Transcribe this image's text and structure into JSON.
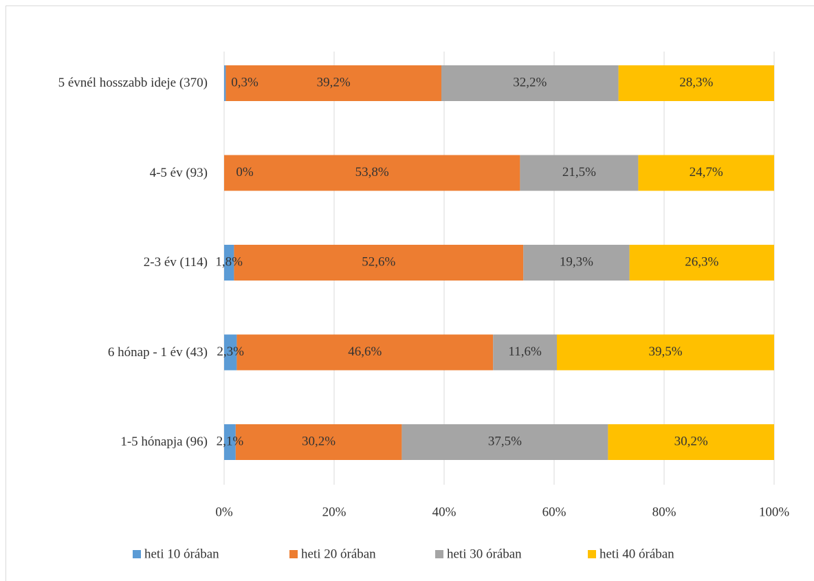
{
  "chart_data": {
    "type": "hbar_stacked",
    "categories": [
      "5 évnél hosszabb ideje (370)",
      "4-5 év (93)",
      "2-3 év (114)",
      "6 hónap - 1 év (43)",
      "1-5 hónapja (96)"
    ],
    "series": [
      {
        "name": "heti 10 órában",
        "color": "#5b9bd5",
        "values": [
          0.3,
          0,
          1.8,
          2.3,
          2.1
        ],
        "value_labels": [
          "0,3%",
          "0%",
          "1,8%",
          "2,3%",
          "2,1%"
        ]
      },
      {
        "name": "heti 20 órában",
        "color": "#ed7d31",
        "values": [
          39.2,
          53.8,
          52.6,
          46.6,
          30.2
        ],
        "value_labels": [
          "39,2%",
          "53,8%",
          "52,6%",
          "46,6%",
          "30,2%"
        ]
      },
      {
        "name": "heti 30 órában",
        "color": "#a5a5a5",
        "values": [
          32.2,
          21.5,
          19.3,
          11.6,
          37.5
        ],
        "value_labels": [
          "32,2%",
          "21,5%",
          "19,3%",
          "11,6%",
          "37,5%"
        ]
      },
      {
        "name": "heti 40 órában",
        "color": "#ffc000",
        "values": [
          28.3,
          24.7,
          26.3,
          39.5,
          30.2
        ],
        "value_labels": [
          "28,3%",
          "24,7%",
          "26,3%",
          "39,5%",
          "30,2%"
        ]
      }
    ],
    "xlim": [
      0,
      100
    ],
    "xticks": [
      {
        "value": 0,
        "label": "0%"
      },
      {
        "value": 20,
        "label": "20%"
      },
      {
        "value": 40,
        "label": "40%"
      },
      {
        "value": 60,
        "label": "60%"
      },
      {
        "value": 80,
        "label": "80%"
      },
      {
        "value": 100,
        "label": "100%"
      }
    ],
    "grid": true,
    "legend": "bottom"
  }
}
